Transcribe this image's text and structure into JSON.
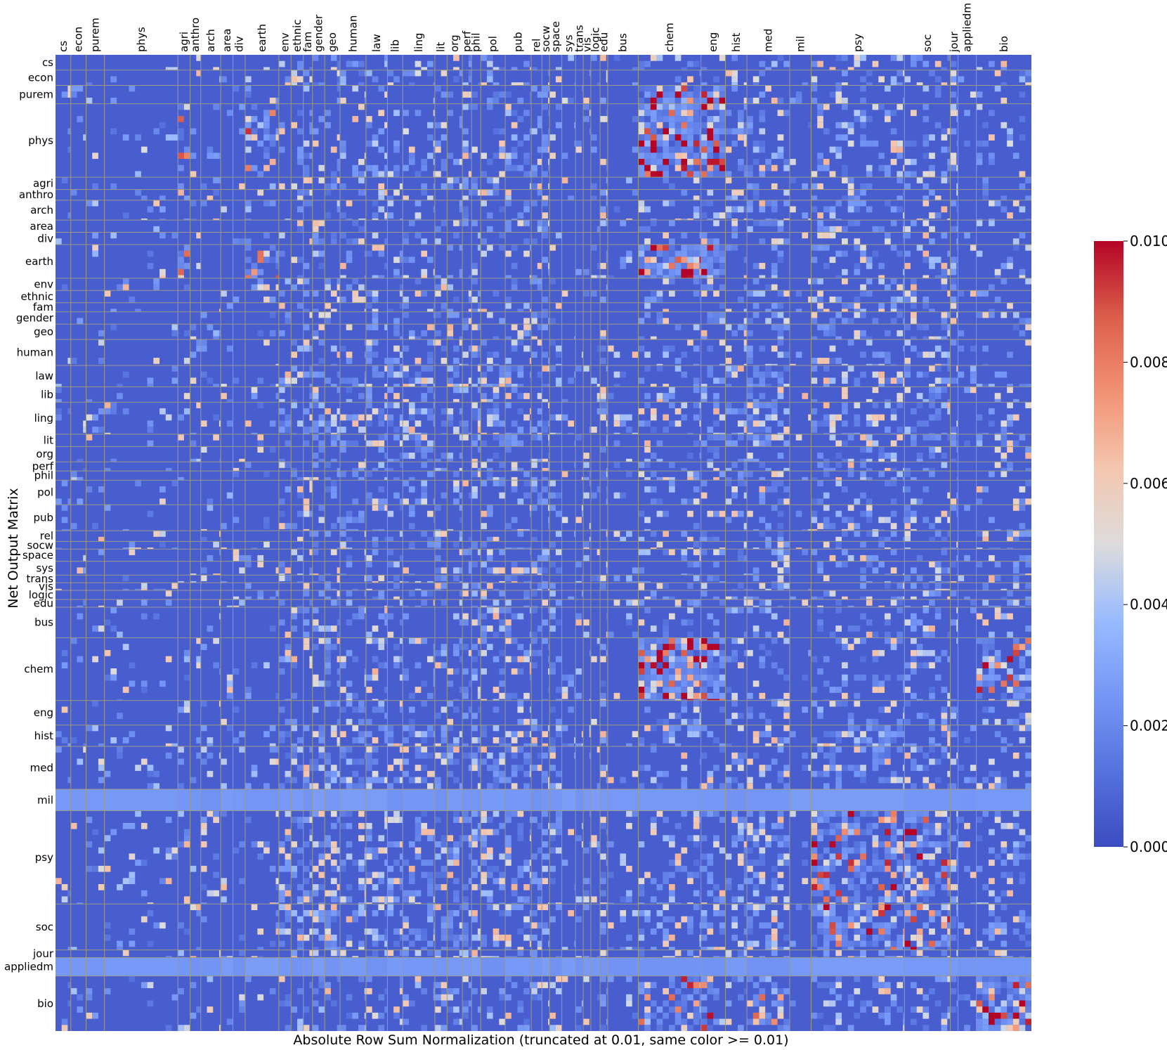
{
  "chart_data": {
    "type": "heatmap",
    "title": "",
    "xlabel": "Absolute Row Sum Normalization (truncated at 0.01, same color >= 0.01)",
    "ylabel": "Net Output Matrix",
    "x_categories": [
      "cs",
      "econ",
      "purem",
      "phys",
      "agri",
      "anthro",
      "arch",
      "area",
      "div",
      "earth",
      "env",
      "ethnic",
      "fam",
      "gender",
      "geo",
      "human",
      "law",
      "lib",
      "ling",
      "lit",
      "org",
      "perf",
      "phil",
      "pol",
      "pub",
      "rel",
      "socw",
      "space",
      "sys",
      "trans",
      "vis",
      "logic",
      "edu",
      "bus",
      "chem",
      "eng",
      "hist",
      "med",
      "mil",
      "psy",
      "soc",
      "jour",
      "appliedm",
      "bio"
    ],
    "y_categories": [
      "cs",
      "econ",
      "purem",
      "phys",
      "agri",
      "anthro",
      "arch",
      "area",
      "div",
      "earth",
      "env",
      "ethnic",
      "fam",
      "gender",
      "geo",
      "human",
      "law",
      "lib",
      "ling",
      "lit",
      "org",
      "perf",
      "phil",
      "pol",
      "pub",
      "rel",
      "socw",
      "space",
      "sys",
      "trans",
      "vis",
      "logic",
      "edu",
      "bus",
      "chem",
      "eng",
      "hist",
      "med",
      "mil",
      "psy",
      "soc",
      "jour",
      "appliedm",
      "bio"
    ],
    "group_sizes": [
      10,
      10,
      12,
      48,
      8,
      7,
      13,
      8,
      8,
      22,
      8,
      8,
      6,
      8,
      10,
      17,
      14,
      10,
      21,
      8,
      10,
      6,
      6,
      16,
      17,
      7,
      5,
      8,
      9,
      5,
      5,
      6,
      5,
      20,
      41,
      16,
      14,
      28,
      14,
      61,
      30,
      5,
      12,
      36
    ],
    "colorbar": {
      "min": 0.0,
      "max": 0.01,
      "ticks": [
        "0.000",
        "0.002",
        "0.004",
        "0.006",
        "0.008",
        "0.010"
      ],
      "colormap": "coolwarm",
      "low_color": "#3b4cc0",
      "mid_color": "#dddddd",
      "high_color": "#b40426"
    },
    "grid_line_color": "#9a9a8a",
    "notes": "Matrix values are truncated at 0.01; most cells near 0.0005-0.001. Hot regions: physics/chem/earth/bio rows x chem/eng columns; bio rows x bio columns; mil and appliedm rows are near-uniform ~0.002."
  }
}
